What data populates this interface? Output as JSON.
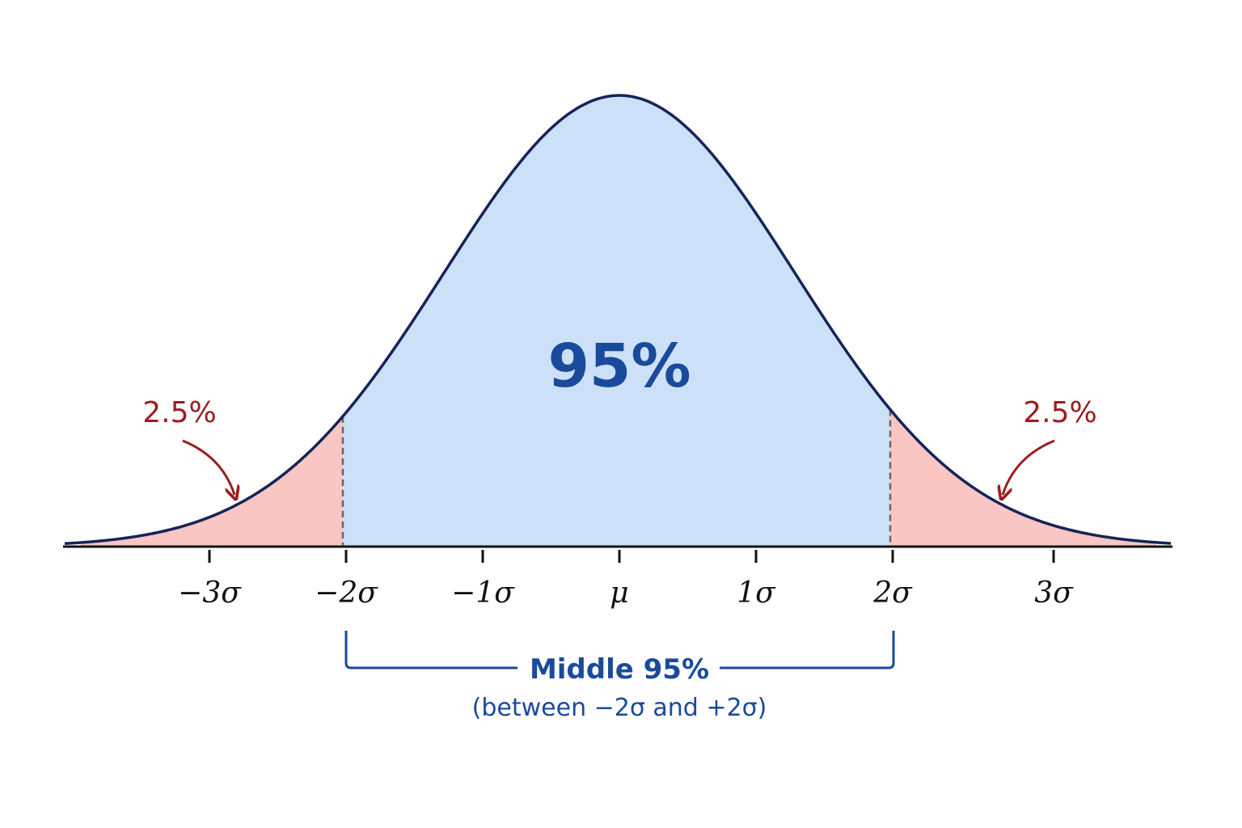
{
  "center_label": "95%",
  "left_tail": {
    "label": "2.5%"
  },
  "right_tail": {
    "label": "2.5%"
  },
  "axis": {
    "ticks": [
      "−3σ",
      "−2σ",
      "−1σ",
      "μ",
      "1σ",
      "2σ",
      "3σ"
    ]
  },
  "bracket": {
    "title": "Middle 95%",
    "subtitle": "(between −2σ and +2σ)"
  }
}
